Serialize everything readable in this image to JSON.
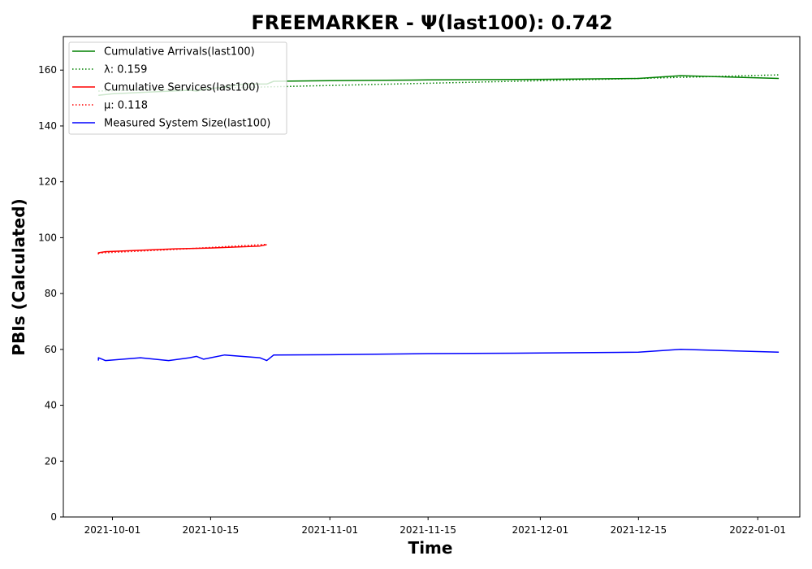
{
  "chart_data": {
    "type": "line",
    "title": "FREEMARKER -  Ψ(last100): 0.742",
    "xlabel": "Time",
    "ylabel": "PBIs (Calculated)",
    "ylim": [
      0,
      172
    ],
    "xlim": [
      "2021-09-24",
      "2022-01-07"
    ],
    "x_ticks": [
      "2021-10-01",
      "2021-10-15",
      "2021-11-01",
      "2021-11-15",
      "2021-12-01",
      "2021-12-15",
      "2022-01-01"
    ],
    "y_ticks": [
      0,
      20,
      40,
      60,
      80,
      100,
      120,
      140,
      160
    ],
    "grid": false,
    "legend_position": "top-left",
    "series": [
      {
        "name": "Cumulative Arrivals(last100)",
        "color": "#008000",
        "style": "solid",
        "points": [
          [
            "2021-09-29",
            151
          ],
          [
            "2021-10-01",
            151.5
          ],
          [
            "2021-10-05",
            152
          ],
          [
            "2021-10-10",
            152.6
          ],
          [
            "2021-10-12",
            152.8
          ],
          [
            "2021-10-13",
            152.5
          ],
          [
            "2021-10-14",
            153
          ],
          [
            "2021-10-17",
            154
          ],
          [
            "2021-10-20",
            155
          ],
          [
            "2021-10-23",
            155
          ],
          [
            "2021-10-24",
            156
          ],
          [
            "2021-11-01",
            156.2
          ],
          [
            "2021-11-15",
            156.5
          ],
          [
            "2021-12-01",
            156.7
          ],
          [
            "2021-12-15",
            157
          ],
          [
            "2021-12-21",
            158
          ],
          [
            "2022-01-04",
            157
          ]
        ]
      },
      {
        "name": "λ: 0.159",
        "color": "#008000",
        "style": "dotted",
        "points": [
          [
            "2021-09-29",
            152.5
          ],
          [
            "2021-10-12",
            153.3
          ],
          [
            "2021-10-20",
            153.8
          ],
          [
            "2021-11-15",
            155.3
          ],
          [
            "2021-12-15",
            157
          ],
          [
            "2022-01-04",
            158.3
          ]
        ]
      },
      {
        "name": "Cumulative Services(last100)",
        "color": "#ff0000",
        "style": "solid",
        "points": [
          [
            "2021-09-29",
            94
          ],
          [
            "2021-09-29",
            94.6
          ],
          [
            "2021-09-30",
            95
          ],
          [
            "2021-10-05",
            95.5
          ],
          [
            "2021-10-10",
            96
          ],
          [
            "2021-10-15",
            96.3
          ],
          [
            "2021-10-22",
            97
          ],
          [
            "2021-10-23",
            97.5
          ]
        ]
      },
      {
        "name": "μ: 0.118",
        "color": "#ff0000",
        "style": "dotted",
        "points": [
          [
            "2021-09-29",
            94.5
          ],
          [
            "2021-10-10",
            95.8
          ],
          [
            "2021-10-23",
            97.6
          ]
        ]
      },
      {
        "name": "Measured System Size(last100)",
        "color": "#0000ff",
        "style": "solid",
        "points": [
          [
            "2021-09-29",
            56
          ],
          [
            "2021-09-29",
            57
          ],
          [
            "2021-09-30",
            56
          ],
          [
            "2021-10-05",
            57
          ],
          [
            "2021-10-09",
            56
          ],
          [
            "2021-10-12",
            57
          ],
          [
            "2021-10-13",
            57.5
          ],
          [
            "2021-10-14",
            56.5
          ],
          [
            "2021-10-15",
            57
          ],
          [
            "2021-10-17",
            58
          ],
          [
            "2021-10-22",
            57
          ],
          [
            "2021-10-23",
            56
          ],
          [
            "2021-10-24",
            58
          ],
          [
            "2021-11-01",
            58.1
          ],
          [
            "2021-11-15",
            58.5
          ],
          [
            "2021-12-01",
            58.7
          ],
          [
            "2021-12-15",
            59
          ],
          [
            "2021-12-21",
            60
          ],
          [
            "2022-01-04",
            59
          ]
        ]
      }
    ]
  }
}
